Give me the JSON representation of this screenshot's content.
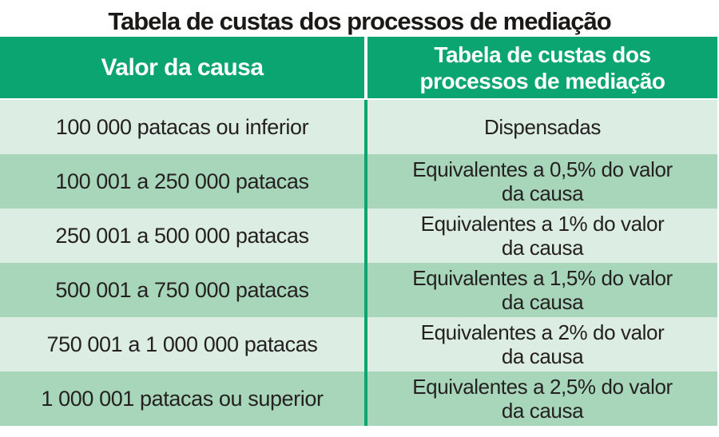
{
  "title": "Tabela de custas dos processos de mediação",
  "table": {
    "headers": {
      "valor": "Valor da causa",
      "custas": "Tabela de custas dos\nprocessos de mediação"
    },
    "rows": [
      {
        "valor": "100 000 patacas ou inferior",
        "custas": "Dispensadas"
      },
      {
        "valor": "100 001 a 250 000 patacas",
        "custas": "Equivalentes a 0,5% do valor\nda causa"
      },
      {
        "valor": "250 001 a 500 000 patacas",
        "custas": "Equivalentes a 1% do valor\nda causa"
      },
      {
        "valor": "500 001 a 750 000 patacas",
        "custas": "Equivalentes a 1,5% do valor\nda causa"
      },
      {
        "valor": "750 001 a 1 000 000 patacas",
        "custas": "Equivalentes a 2% do valor\nda causa"
      },
      {
        "valor": "1 000 001 patacas ou superior",
        "custas": "Equivalentes a 2,5% do valor\nda causa"
      }
    ],
    "colors": {
      "header_green": "#0ba572",
      "row_light": "#dcede3",
      "row_medium": "#a7d6bb",
      "header_text": "#ffffff",
      "body_text": "#242120",
      "title_text": "#1b1918"
    }
  },
  "chart_data": {
    "type": "table",
    "title": "Tabela de custas dos processos de mediação",
    "columns": [
      "Valor da causa",
      "Tabela de custas dos processos de mediação"
    ],
    "rows": [
      [
        "100 000 patacas ou inferior",
        "Dispensadas"
      ],
      [
        "100 001 a 250 000 patacas",
        "Equivalentes a 0,5% do valor da causa"
      ],
      [
        "250 001 a 500 000 patacas",
        "Equivalentes a 1% do valor da causa"
      ],
      [
        "500 001 a 750 000 patacas",
        "Equivalentes a 1,5% do valor da causa"
      ],
      [
        "750 001 a 1 000 000 patacas",
        "Equivalentes a 2% do valor da causa"
      ],
      [
        "1 000 001 patacas ou superior",
        "Equivalentes a 2,5% do valor da causa"
      ]
    ],
    "layout": {
      "header_background": "#0ba572",
      "row_stripes": [
        "#dcede3",
        "#a7d6bb"
      ],
      "grid": "off"
    }
  }
}
